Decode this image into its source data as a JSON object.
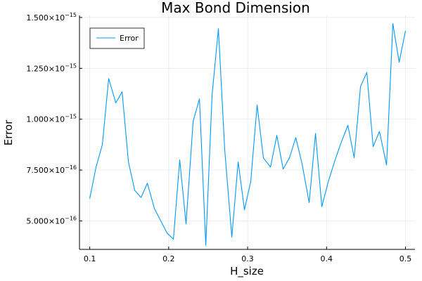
{
  "chart_data": {
    "type": "line",
    "title": "Max Bond Dimension",
    "xlabel": "H_size",
    "ylabel": "Error",
    "xlim": [
      0.087,
      0.512
    ],
    "ylim": [
      3.6e-16,
      1.51e-15
    ],
    "xticks": [
      {
        "value": 0.1,
        "label": "0.1"
      },
      {
        "value": 0.2,
        "label": "0.2"
      },
      {
        "value": 0.3,
        "label": "0.3"
      },
      {
        "value": 0.4,
        "label": "0.4"
      },
      {
        "value": 0.5,
        "label": "0.5"
      }
    ],
    "yticks": [
      {
        "value": 5e-16,
        "mantissa": "5.000",
        "exponent": "−16"
      },
      {
        "value": 7.5e-16,
        "mantissa": "7.500",
        "exponent": "−16"
      },
      {
        "value": 1e-15,
        "mantissa": "1.000",
        "exponent": "−15"
      },
      {
        "value": 1.25e-15,
        "mantissa": "1.250",
        "exponent": "−15"
      },
      {
        "value": 1.5e-15,
        "mantissa": "1.500",
        "exponent": "−15"
      }
    ],
    "grid": true,
    "legend_position": "top-left",
    "series": [
      {
        "name": "Error",
        "color": "#009af9",
        "x": [
          0.1,
          0.108,
          0.116,
          0.124,
          0.133,
          0.141,
          0.149,
          0.157,
          0.165,
          0.173,
          0.182,
          0.19,
          0.198,
          0.206,
          0.214,
          0.222,
          0.231,
          0.239,
          0.247,
          0.255,
          0.263,
          0.271,
          0.28,
          0.288,
          0.296,
          0.304,
          0.312,
          0.32,
          0.329,
          0.337,
          0.345,
          0.353,
          0.361,
          0.369,
          0.378,
          0.386,
          0.394,
          0.402,
          0.41,
          0.418,
          0.427,
          0.435,
          0.443,
          0.451,
          0.459,
          0.467,
          0.476,
          0.484,
          0.492,
          0.5
        ],
        "y": [
          6.1e-16,
          7.65e-16,
          8.75e-16,
          1.2e-15,
          1.08e-15,
          1.135e-15,
          7.9e-16,
          6.5e-16,
          6.15e-16,
          6.85e-16,
          5.6e-16,
          5e-16,
          4.4e-16,
          4.1e-16,
          8e-16,
          4.85e-16,
          9.9e-16,
          1.1e-15,
          3.8e-16,
          1.12e-15,
          1.445e-15,
          8.5e-16,
          4.2e-16,
          7.9e-16,
          5.55e-16,
          6.95e-16,
          1.07e-15,
          8.1e-16,
          7.65e-16,
          9.2e-16,
          7.55e-16,
          8.1e-16,
          9.1e-16,
          7.8e-16,
          5.9e-16,
          9.3e-16,
          5.7e-16,
          6.9e-16,
          7.9e-16,
          8.8e-16,
          9.7e-16,
          8.1e-16,
          1.16e-15,
          1.23e-15,
          8.65e-16,
          9.4e-16,
          7.75e-16,
          1.47e-15,
          1.28e-15,
          1.435e-15
        ]
      }
    ]
  }
}
